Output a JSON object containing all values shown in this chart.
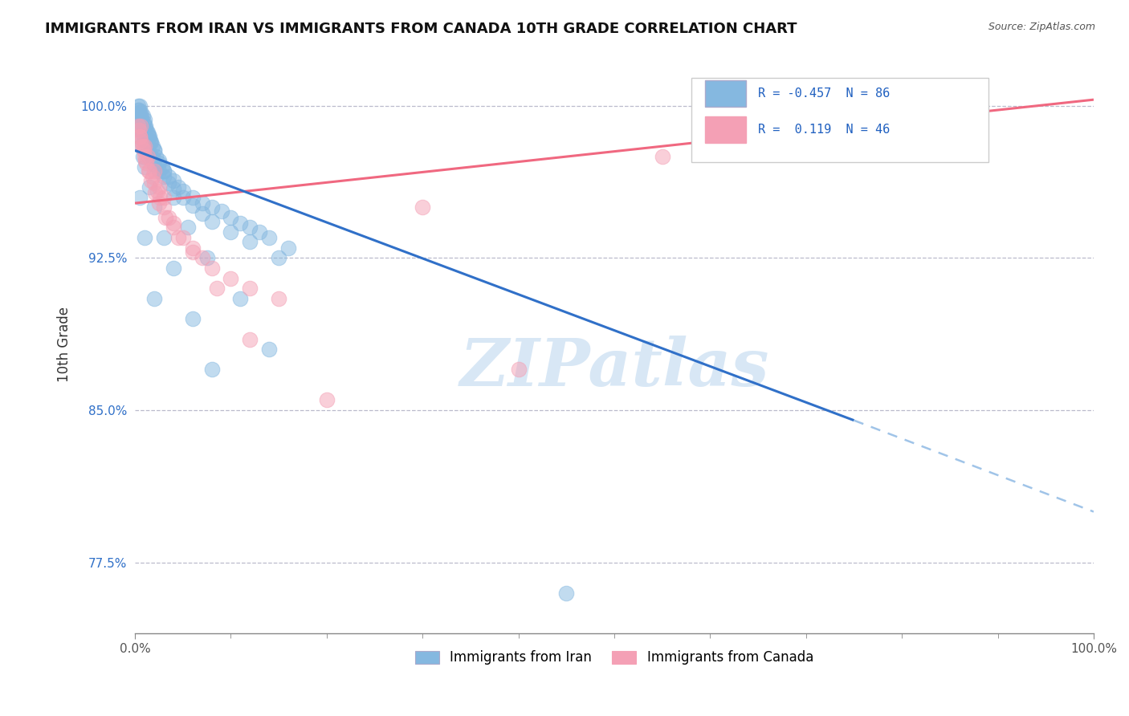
{
  "title": "IMMIGRANTS FROM IRAN VS IMMIGRANTS FROM CANADA 10TH GRADE CORRELATION CHART",
  "source_text": "Source: ZipAtlas.com",
  "ylabel": "10th Grade",
  "xmin": 0.0,
  "xmax": 100.0,
  "ymin": 74.0,
  "ymax": 102.5,
  "ytick_labels": [
    "77.5%",
    "85.0%",
    "92.5%",
    "100.0%"
  ],
  "ytick_vals": [
    77.5,
    85.0,
    92.5,
    100.0
  ],
  "xtick_labels": [
    "0.0%",
    "100.0%"
  ],
  "xtick_vals": [
    0.0,
    100.0
  ],
  "legend_iran_label": "Immigrants from Iran",
  "legend_canada_label": "Immigrants from Canada",
  "iran_R": "-0.457",
  "iran_N": "86",
  "canada_R": "0.119",
  "canada_N": "46",
  "iran_color": "#85b8e0",
  "canada_color": "#f4a0b5",
  "iran_line_color": "#3070c8",
  "canada_line_color": "#f06880",
  "iran_dash_color": "#a0c4e8",
  "watermark": "ZIPatlas",
  "background_color": "#ffffff",
  "iran_line_x0": 0.0,
  "iran_line_y0": 97.8,
  "iran_line_x1": 75.0,
  "iran_line_y1": 84.5,
  "iran_dash_x0": 75.0,
  "iran_dash_y0": 84.5,
  "iran_dash_x1": 100.0,
  "iran_dash_y1": 80.0,
  "canada_line_x0": 0.0,
  "canada_line_y0": 95.2,
  "canada_line_x1": 100.0,
  "canada_line_y1": 100.3,
  "iran_scatter_x": [
    0.3,
    0.4,
    0.5,
    0.6,
    0.7,
    0.8,
    0.9,
    1.0,
    1.1,
    1.2,
    1.3,
    1.4,
    1.5,
    1.6,
    1.7,
    1.8,
    2.0,
    2.2,
    2.5,
    2.8,
    3.0,
    3.5,
    4.0,
    4.5,
    5.0,
    6.0,
    7.0,
    8.0,
    9.0,
    10.0,
    11.0,
    12.0,
    13.0,
    14.0,
    16.0,
    0.3,
    0.4,
    0.5,
    0.6,
    0.7,
    0.8,
    1.0,
    1.2,
    1.5,
    1.8,
    2.0,
    2.5,
    3.0,
    3.5,
    4.0,
    5.0,
    6.0,
    7.0,
    8.0,
    10.0,
    12.0,
    15.0,
    0.3,
    0.5,
    0.7,
    1.0,
    1.3,
    1.6,
    2.0,
    2.5,
    3.0,
    4.0,
    5.5,
    7.5,
    0.4,
    0.6,
    0.8,
    1.0,
    1.5,
    2.0,
    3.0,
    4.0,
    6.0,
    8.0,
    11.0,
    14.0,
    0.5,
    1.0,
    2.0,
    45.0
  ],
  "iran_scatter_y": [
    100.0,
    99.8,
    100.0,
    99.7,
    99.5,
    99.5,
    99.2,
    99.3,
    99.0,
    98.8,
    98.7,
    98.5,
    98.5,
    98.3,
    98.2,
    98.0,
    97.8,
    97.5,
    97.2,
    97.0,
    96.8,
    96.5,
    96.3,
    96.0,
    95.8,
    95.5,
    95.2,
    95.0,
    94.8,
    94.5,
    94.2,
    94.0,
    93.8,
    93.5,
    93.0,
    99.6,
    99.4,
    99.2,
    99.0,
    98.8,
    98.6,
    98.3,
    98.0,
    97.7,
    97.4,
    97.1,
    96.8,
    96.5,
    96.2,
    95.9,
    95.5,
    95.1,
    94.7,
    94.3,
    93.8,
    93.3,
    92.5,
    99.8,
    99.5,
    99.3,
    99.0,
    98.6,
    98.2,
    97.8,
    97.3,
    96.8,
    95.5,
    94.0,
    92.5,
    98.5,
    98.0,
    97.5,
    97.0,
    96.0,
    95.0,
    93.5,
    92.0,
    89.5,
    87.0,
    90.5,
    88.0,
    95.5,
    93.5,
    90.5,
    76.0
  ],
  "canada_scatter_x": [
    0.3,
    0.5,
    0.7,
    1.0,
    1.2,
    1.5,
    1.8,
    2.0,
    2.3,
    2.6,
    3.0,
    3.5,
    4.0,
    5.0,
    6.0,
    7.0,
    8.0,
    10.0,
    12.0,
    15.0,
    0.4,
    0.6,
    0.9,
    1.1,
    1.4,
    1.7,
    2.1,
    2.5,
    3.2,
    4.5,
    0.5,
    0.8,
    1.3,
    2.0,
    3.0,
    4.0,
    6.0,
    8.5,
    12.0,
    20.0,
    30.0,
    40.0,
    55.0,
    0.6,
    1.0,
    2.5
  ],
  "canada_scatter_y": [
    99.0,
    98.5,
    98.0,
    97.5,
    97.2,
    96.8,
    96.5,
    96.2,
    95.8,
    95.5,
    95.0,
    94.5,
    94.0,
    93.5,
    93.0,
    92.5,
    92.0,
    91.5,
    91.0,
    90.5,
    98.8,
    98.3,
    97.8,
    97.3,
    96.8,
    96.3,
    95.7,
    95.2,
    94.5,
    93.5,
    98.5,
    98.0,
    97.5,
    96.8,
    95.5,
    94.2,
    92.8,
    91.0,
    88.5,
    85.5,
    95.0,
    87.0,
    97.5,
    99.0,
    98.0,
    96.0
  ]
}
